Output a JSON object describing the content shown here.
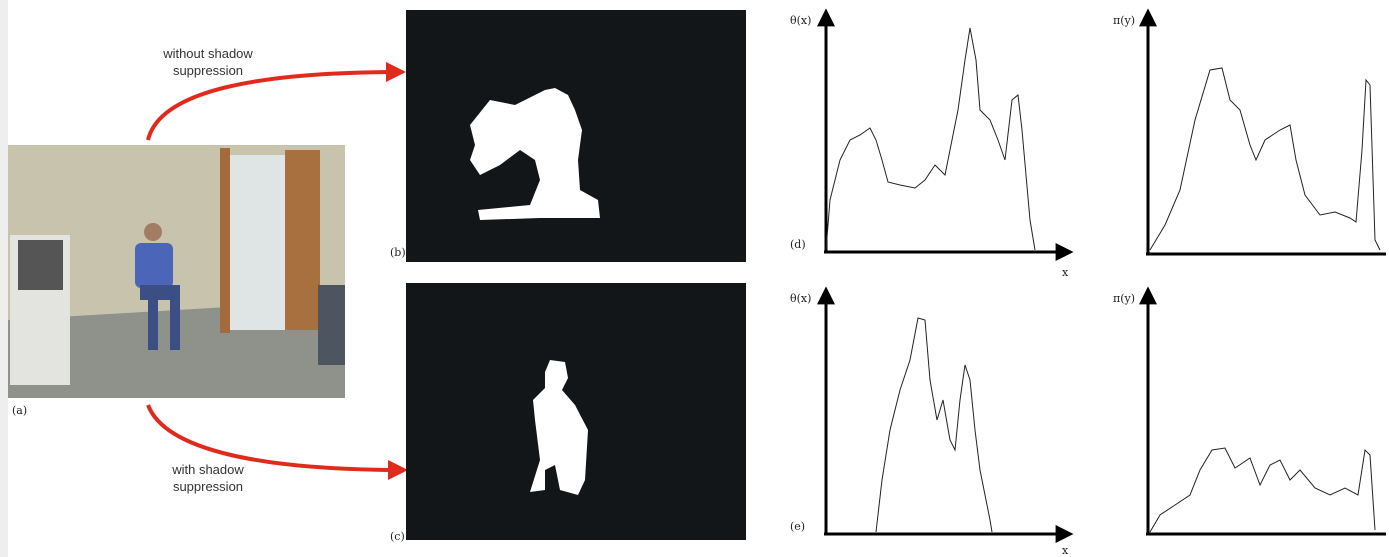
{
  "labels": {
    "a": "(a)",
    "b": "(b)",
    "c": "(c)"
  },
  "arrows": [
    {
      "lines": [
        "without shadow",
        "suppression"
      ]
    },
    {
      "lines": [
        "with shadow",
        "suppression"
      ]
    }
  ],
  "plots": [
    {
      "panel": "(d)",
      "y_label": "θ(x)",
      "x_label": "x"
    },
    {
      "y_label": "π(y)"
    },
    {
      "panel": "(e)",
      "y_label": "θ(x)",
      "x_label": "x"
    },
    {
      "y_label": "π(y)"
    }
  ]
}
